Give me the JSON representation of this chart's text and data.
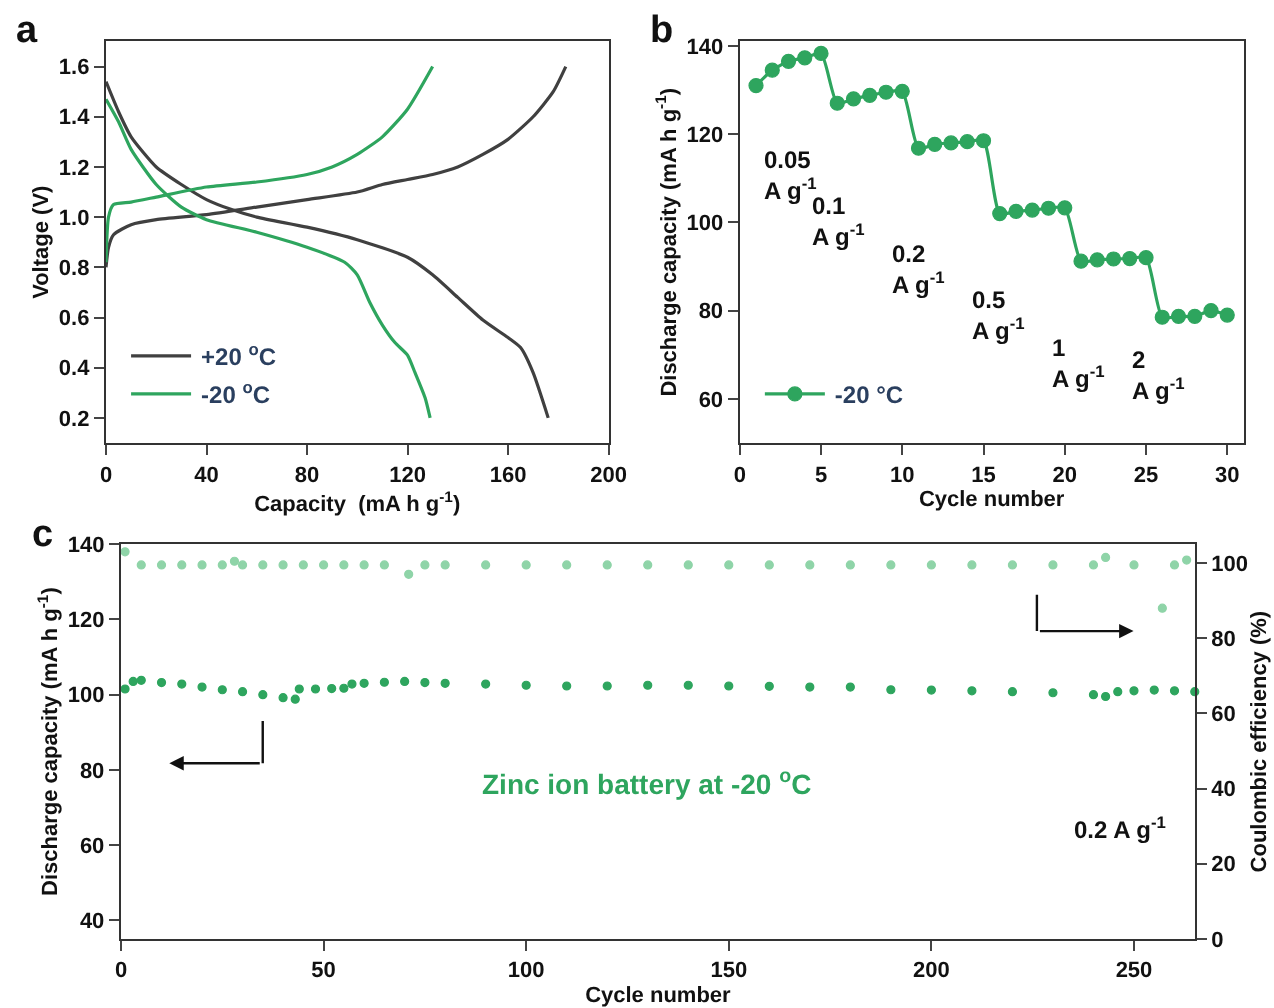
{
  "chart_data": [
    {
      "type": "line",
      "xlabel": "Capacity  (mA h g$^{-1}$)",
      "ylabel": "Voltage (V)",
      "xlim": [
        0,
        200
      ],
      "ylim": [
        0.1,
        1.7
      ],
      "xticks": [
        0,
        40,
        80,
        120,
        160,
        200
      ],
      "yticks": [
        {
          "value": 0.2,
          "label": "0.2"
        },
        {
          "value": 0.4,
          "label": "0.4"
        },
        {
          "value": 0.6,
          "label": "0.6"
        },
        {
          "value": 0.8,
          "label": "0.8"
        },
        {
          "value": 1.0,
          "label": "1.0"
        },
        {
          "value": 1.2,
          "label": "1.2"
        },
        {
          "value": 1.4,
          "label": "1.4"
        },
        {
          "value": 1.6,
          "label": "1.6"
        }
      ],
      "legend": "bottom left",
      "marker": "none",
      "line_style": "solid",
      "annotations": [
        "a"
      ],
      "series": [
        {
          "name": "+20 $^{o}$C",
          "color": "#404040",
          "x": [
            0,
            5,
            10,
            20,
            30,
            40,
            50,
            60,
            80,
            100,
            120,
            130,
            140,
            150,
            160,
            165,
            170,
            176
          ],
          "values": [
            1.54,
            1.42,
            1.32,
            1.2,
            1.13,
            1.07,
            1.03,
            1.0,
            0.96,
            0.91,
            0.84,
            0.77,
            0.68,
            0.59,
            0.52,
            0.48,
            0.38,
            0.2
          ]
        },
        {
          "color": "#404040",
          "x": [
            0,
            1,
            3,
            10,
            20,
            40,
            60,
            80,
            100,
            110,
            120,
            130,
            140,
            150,
            160,
            170,
            178,
            183
          ],
          "values": [
            0.8,
            0.88,
            0.93,
            0.97,
            0.99,
            1.01,
            1.04,
            1.07,
            1.1,
            1.13,
            1.15,
            1.17,
            1.2,
            1.25,
            1.31,
            1.4,
            1.5,
            1.6
          ]
        },
        {
          "name": "-20 $^{o}$C",
          "color": "#2ea55e",
          "x": [
            0,
            5,
            10,
            20,
            30,
            40,
            60,
            80,
            95,
            100,
            105,
            110,
            115,
            120,
            123,
            127,
            129
          ],
          "values": [
            1.47,
            1.38,
            1.27,
            1.13,
            1.04,
            0.99,
            0.94,
            0.88,
            0.82,
            0.77,
            0.66,
            0.57,
            0.5,
            0.45,
            0.38,
            0.28,
            0.2
          ]
        },
        {
          "color": "#2ea55e",
          "x": [
            0,
            1,
            3,
            10,
            20,
            40,
            60,
            80,
            90,
            100,
            110,
            120,
            130
          ],
          "values": [
            0.82,
            1.0,
            1.05,
            1.06,
            1.08,
            1.12,
            1.14,
            1.17,
            1.2,
            1.25,
            1.32,
            1.43,
            1.6
          ]
        }
      ]
    },
    {
      "type": "line",
      "xlabel": "Cycle number",
      "ylabel": "Discharge capacity (mA h g$^{-1}$)",
      "xlim": [
        0,
        31
      ],
      "ylim": [
        50,
        141
      ],
      "xticks": [
        0,
        5,
        10,
        15,
        20,
        25,
        30
      ],
      "yticks": [
        60,
        80,
        100,
        120,
        140
      ],
      "legend": "bottom left",
      "marker": "circle",
      "line_style": "solid",
      "annotations": [
        "b",
        "0.05\nA g$^{-1}$",
        "0.1\nA g$^{-1}$",
        "0.2\nA g$^{-1}$",
        "0.5\nA g$^{-1}$",
        "1\nA g$^{-1}$",
        "2\nA g$^{-1}$"
      ],
      "series": [
        {
          "name": "-20 °C",
          "color": "#2ea55e",
          "x": [
            1,
            2,
            3,
            4,
            5,
            6,
            7,
            8,
            9,
            10,
            11,
            12,
            13,
            14,
            15,
            16,
            17,
            18,
            19,
            20,
            21,
            22,
            23,
            24,
            25,
            26,
            27,
            28,
            29,
            30
          ],
          "values": [
            131,
            134.5,
            136.5,
            137.3,
            138.3,
            127,
            128,
            128.8,
            129.5,
            129.7,
            116.8,
            117.7,
            118,
            118.3,
            118.5,
            102,
            102.5,
            102.8,
            103.2,
            103.3,
            91.2,
            91.5,
            91.7,
            91.8,
            92,
            78.5,
            78.7,
            78.7,
            80,
            79
          ]
        }
      ]
    },
    {
      "type": "scatter",
      "xlabel": "Cycle number",
      "ylabel": "Discharge capacity (mA h g$^{-1}$)",
      "y2label": "Coulombic efficiency (%)",
      "xlim": [
        0,
        265
      ],
      "ylim": [
        35,
        140
      ],
      "y2lim": [
        0,
        105
      ],
      "xticks": [
        0,
        50,
        100,
        150,
        200,
        250
      ],
      "yticks": [
        40,
        60,
        80,
        100,
        120,
        140
      ],
      "y2ticks": [
        0,
        20,
        40,
        60,
        80,
        100
      ],
      "legend": false,
      "marker": "circle",
      "annotations": [
        "c",
        "Zinc ion battery at -20 $^{o}$C",
        "0.2 A g$^{-1}$"
      ],
      "series": [
        {
          "color": "#2ea55e",
          "x": [
            1,
            3,
            5,
            10,
            15,
            20,
            25,
            30,
            35,
            40,
            43,
            44,
            48,
            52,
            55,
            57,
            60,
            65,
            70,
            75,
            80,
            90,
            100,
            110,
            120,
            130,
            140,
            150,
            160,
            170,
            180,
            190,
            200,
            210,
            220,
            230,
            240,
            243,
            246,
            250,
            255,
            260,
            265
          ],
          "values": [
            101.5,
            103.5,
            103.8,
            103.2,
            102.8,
            102,
            101.3,
            100.8,
            100,
            99.2,
            98.8,
            101.5,
            101.5,
            101.6,
            101.7,
            102.8,
            103,
            103.3,
            103.5,
            103.2,
            103,
            102.8,
            102.5,
            102.3,
            102.3,
            102.5,
            102.5,
            102.3,
            102.2,
            102,
            102,
            101.3,
            101.2,
            101,
            100.8,
            100.5,
            100,
            99.5,
            100.8,
            101,
            101.2,
            101,
            100.8
          ]
        },
        {
          "color": "#8fd4a8",
          "axis": "y2",
          "x": [
            1,
            5,
            10,
            15,
            20,
            25,
            28,
            30,
            35,
            40,
            45,
            50,
            55,
            60,
            65,
            71,
            75,
            80,
            90,
            100,
            110,
            120,
            130,
            140,
            150,
            160,
            170,
            180,
            190,
            200,
            210,
            220,
            230,
            240,
            243,
            250,
            257,
            260,
            263
          ],
          "values": [
            103,
            99.5,
            99.5,
            99.5,
            99.5,
            99.5,
            100.5,
            99.5,
            99.5,
            99.5,
            99.5,
            99.5,
            99.5,
            99.5,
            99.5,
            97,
            99.5,
            99.5,
            99.5,
            99.5,
            99.5,
            99.5,
            99.5,
            99.5,
            99.5,
            99.5,
            99.5,
            99.5,
            99.5,
            99.5,
            99.5,
            99.5,
            99.5,
            99.5,
            101.5,
            99.5,
            88,
            99.5,
            100.8
          ]
        }
      ]
    }
  ]
}
